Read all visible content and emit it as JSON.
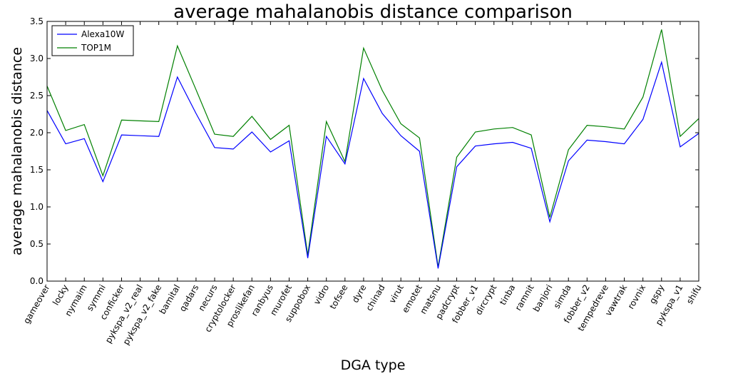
{
  "chart_data": {
    "type": "line",
    "title": "average mahalanobis distance  comparison",
    "xlabel": "DGA type",
    "ylabel": "average mahalanobis distance",
    "ylim": [
      0.0,
      3.5
    ],
    "yticks": [
      "0.0",
      "0.5",
      "1.0",
      "1.5",
      "2.0",
      "2.5",
      "3.0",
      "3.5"
    ],
    "grid": false,
    "legend_position": "top-left",
    "categories": [
      "gameover",
      "locky",
      "nymaim",
      "symmi",
      "conficker",
      "pykspa_v2_real",
      "pykspa_v2_fake",
      "bamital",
      "qadars",
      "necurs",
      "cryptolocker",
      "proslikefan",
      "ranbyus",
      "murofet",
      "suppobox",
      "vidro",
      "tofsee",
      "dyre",
      "chinad",
      "virut",
      "emotet",
      "matsnu",
      "padcrypt",
      "fobber_v1",
      "dircrypt",
      "tinba",
      "ramnit",
      "banjori",
      "simda",
      "fobber_v2",
      "tempedreve",
      "vawtrak",
      "rovnix",
      "gspy",
      "pykspa_v1",
      "shifu"
    ],
    "series": [
      {
        "name": "Alexa10W",
        "color": "#0000ff",
        "values": [
          2.3,
          1.85,
          1.92,
          1.34,
          1.97,
          1.96,
          1.95,
          2.75,
          2.26,
          1.8,
          1.78,
          2.01,
          1.74,
          1.89,
          0.31,
          1.95,
          1.58,
          2.73,
          2.26,
          1.96,
          1.75,
          0.17,
          1.54,
          1.82,
          1.85,
          1.87,
          1.79,
          0.8,
          1.62,
          1.9,
          1.88,
          1.85,
          2.18,
          2.95,
          1.81,
          1.99
        ]
      },
      {
        "name": "TOP1M",
        "color": "#008000",
        "values": [
          2.63,
          2.03,
          2.11,
          1.42,
          2.17,
          2.16,
          2.15,
          3.17,
          2.58,
          1.98,
          1.95,
          2.22,
          1.91,
          2.1,
          0.35,
          2.15,
          1.61,
          3.14,
          2.57,
          2.12,
          1.93,
          0.19,
          1.67,
          2.01,
          2.05,
          2.07,
          1.97,
          0.86,
          1.77,
          2.1,
          2.08,
          2.05,
          2.48,
          3.39,
          1.95,
          2.19
        ]
      }
    ]
  }
}
